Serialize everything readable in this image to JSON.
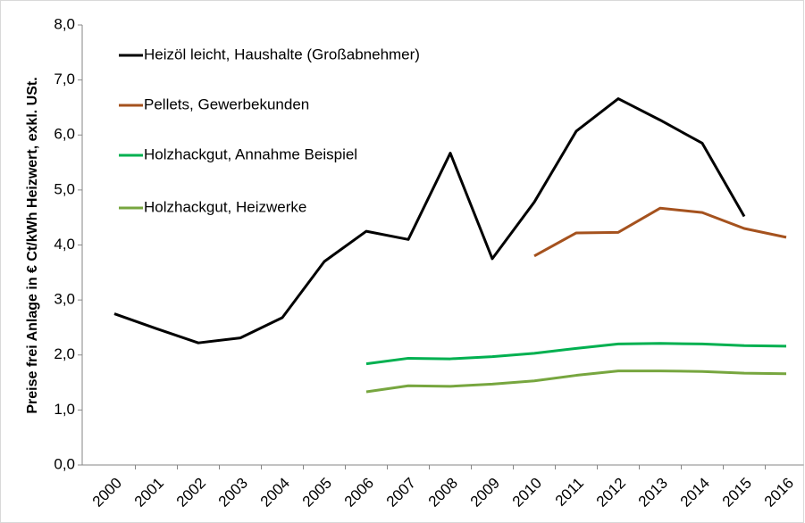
{
  "chart_data": {
    "type": "line",
    "y_label": "Preise frei Anlage in € Ct/kWh Heizwert, exkl. USt.",
    "categories": [
      "2000",
      "2001",
      "2002",
      "2003",
      "2004",
      "2005",
      "2006",
      "2007",
      "2008",
      "2009",
      "2010",
      "2011",
      "2012",
      "2013",
      "2014",
      "2015",
      "2016"
    ],
    "series": [
      {
        "name": "Heizöl leicht, Haushalte (Großabnehmer)",
        "color": "#000000",
        "values": [
          2.75,
          2.48,
          2.22,
          2.31,
          2.68,
          3.7,
          4.25,
          4.1,
          5.67,
          3.75,
          4.78,
          6.07,
          6.66,
          6.27,
          5.85,
          4.52,
          null
        ]
      },
      {
        "name": "Pellets, Gewerbekunden",
        "color": "#a5521e",
        "values": [
          null,
          null,
          null,
          null,
          null,
          null,
          null,
          null,
          null,
          null,
          3.8,
          4.22,
          4.23,
          4.67,
          4.59,
          4.3,
          4.14
        ]
      },
      {
        "name": "Holzhackgut, Annahme Beispiel",
        "color": "#00b050",
        "values": [
          null,
          null,
          null,
          null,
          null,
          null,
          1.84,
          1.94,
          1.93,
          1.97,
          2.03,
          2.12,
          2.2,
          2.21,
          2.2,
          2.17,
          2.16
        ]
      },
      {
        "name": "Holzhackgut, Heizwerke",
        "color": "#77a63f",
        "values": [
          null,
          null,
          null,
          null,
          null,
          null,
          1.33,
          1.44,
          1.43,
          1.47,
          1.53,
          1.63,
          1.71,
          1.71,
          1.7,
          1.67,
          1.66
        ]
      }
    ],
    "ylim": [
      0,
      8
    ],
    "yticks": [
      {
        "value": 0,
        "label": "0,0"
      },
      {
        "value": 1,
        "label": "1,0"
      },
      {
        "value": 2,
        "label": "2,0"
      },
      {
        "value": 3,
        "label": "3,0"
      },
      {
        "value": 4,
        "label": "4,0"
      },
      {
        "value": 5,
        "label": "5,0"
      },
      {
        "value": 6,
        "label": "6,0"
      },
      {
        "value": 7,
        "label": "7,0"
      },
      {
        "value": 8,
        "label": "8,0"
      }
    ],
    "legend": "upper left"
  }
}
